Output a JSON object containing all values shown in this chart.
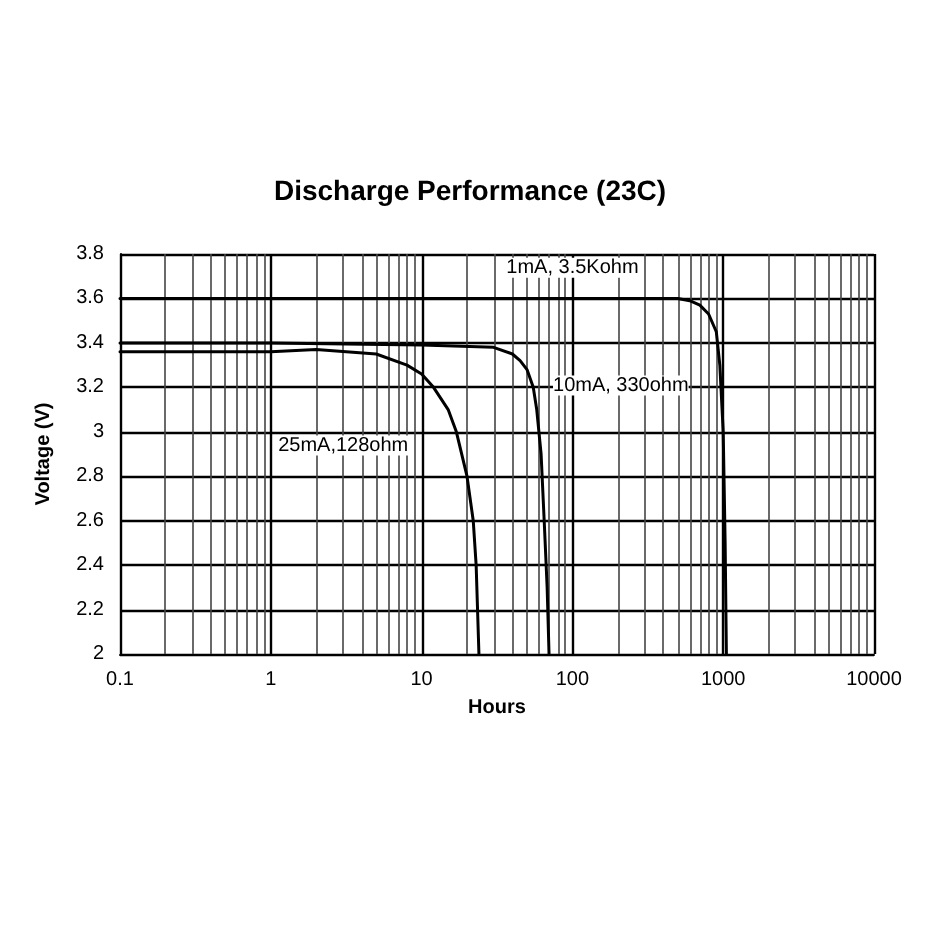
{
  "chart_data": {
    "type": "line",
    "title": "Discharge Performance (23C)",
    "xlabel": "Hours",
    "ylabel": "Voltage (V)",
    "log": "x",
    "grid": true,
    "legend": false,
    "marker": "none",
    "line_style": "solid",
    "xlim": [
      0.1,
      10000
    ],
    "xticks": [
      0.1,
      1,
      10,
      100,
      1000,
      10000
    ],
    "ylim": [
      2,
      3.8
    ],
    "yticks": [
      2,
      2.2,
      2.4,
      2.6,
      2.8,
      3,
      3.2,
      3.4,
      3.6,
      3.8
    ],
    "series": [
      {
        "name": "1mA, 3.5Kohm",
        "color": "#000000",
        "x": [
          0.1,
          1,
          10,
          100,
          300,
          500,
          600,
          700,
          800,
          900,
          950,
          1000,
          1030,
          1050
        ],
        "values": [
          3.6,
          3.6,
          3.6,
          3.6,
          3.6,
          3.6,
          3.59,
          3.57,
          3.53,
          3.45,
          3.3,
          3.0,
          2.5,
          2.0
        ]
      },
      {
        "name": "10mA, 330ohm",
        "color": "#000000",
        "x": [
          0.1,
          1,
          10,
          30,
          40,
          45,
          50,
          55,
          58,
          62,
          65,
          68,
          70
        ],
        "values": [
          3.4,
          3.4,
          3.39,
          3.38,
          3.35,
          3.32,
          3.28,
          3.2,
          3.1,
          2.9,
          2.6,
          2.3,
          2.0
        ]
      },
      {
        "name": "25mA,128ohm",
        "color": "#000000",
        "x": [
          0.1,
          1,
          2,
          5,
          8,
          10,
          12,
          15,
          17,
          20,
          22,
          23,
          24
        ],
        "values": [
          3.36,
          3.36,
          3.37,
          3.35,
          3.3,
          3.26,
          3.2,
          3.1,
          3.0,
          2.8,
          2.6,
          2.4,
          2.0
        ]
      }
    ]
  }
}
